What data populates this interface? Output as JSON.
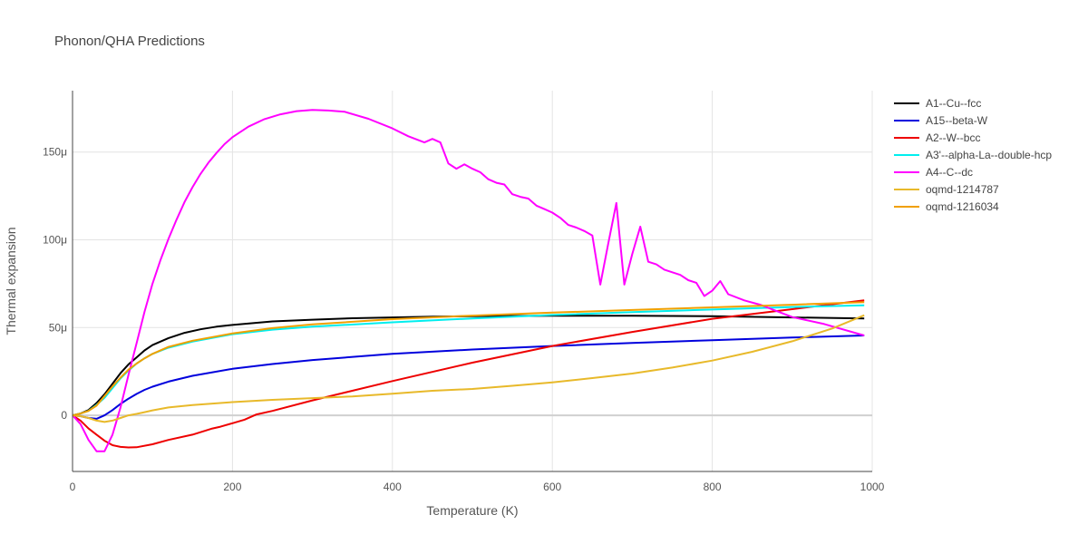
{
  "chart_data": {
    "type": "line",
    "title": "Phonon/QHA Predictions",
    "xlabel": "Temperature (K)",
    "ylabel": "Thermal expansion",
    "xlim": [
      0,
      1000
    ],
    "ylim": [
      -3.2e-05,
      0.000185
    ],
    "x_ticks": [
      0,
      200,
      400,
      600,
      800,
      1000
    ],
    "x_tick_labels": [
      "0",
      "200",
      "400",
      "600",
      "800",
      "1000"
    ],
    "y_ticks": [
      0,
      5e-05,
      0.0001,
      0.00015
    ],
    "y_tick_labels": [
      "0",
      "50μ",
      "100μ",
      "150μ"
    ],
    "grid": true,
    "legend_position": "right",
    "series": [
      {
        "name": "A1--Cu--fcc",
        "color": "#000000",
        "x": [
          0,
          10,
          20,
          30,
          40,
          50,
          60,
          70,
          80,
          90,
          100,
          120,
          140,
          160,
          180,
          200,
          250,
          300,
          350,
          400,
          450,
          500,
          600,
          700,
          800,
          900,
          990
        ],
        "y": [
          0,
          1e-06,
          3e-06,
          7e-06,
          1.2e-05,
          1.8e-05,
          2.4e-05,
          2.9e-05,
          3.3e-05,
          3.7e-05,
          4e-05,
          4.4e-05,
          4.7e-05,
          4.9e-05,
          5.05e-05,
          5.15e-05,
          5.35e-05,
          5.45e-05,
          5.53e-05,
          5.58e-05,
          5.62e-05,
          5.65e-05,
          5.67e-05,
          5.67e-05,
          5.65e-05,
          5.58e-05,
          5.52e-05
        ]
      },
      {
        "name": "A15--beta-W",
        "color": "#0000dd",
        "x": [
          0,
          10,
          20,
          30,
          40,
          50,
          60,
          70,
          80,
          90,
          100,
          120,
          150,
          200,
          250,
          300,
          400,
          500,
          600,
          700,
          800,
          900,
          990
        ],
        "y": [
          0,
          -5e-07,
          -1.5e-06,
          -2e-06,
          0,
          3e-06,
          6.5e-06,
          9.5e-06,
          1.22e-05,
          1.45e-05,
          1.63e-05,
          1.92e-05,
          2.25e-05,
          2.65e-05,
          2.92e-05,
          3.15e-05,
          3.5e-05,
          3.75e-05,
          3.95e-05,
          4.12e-05,
          4.28e-05,
          4.43e-05,
          4.55e-05
        ]
      },
      {
        "name": "A2--W--bcc",
        "color": "#ee0000",
        "x": [
          0,
          10,
          20,
          30,
          40,
          50,
          60,
          70,
          80,
          100,
          120,
          150,
          175,
          185,
          200,
          215,
          230,
          250,
          300,
          400,
          500,
          600,
          700,
          800,
          900,
          990
        ],
        "y": [
          0,
          -3e-06,
          -7.5e-06,
          -1.1e-05,
          -1.45e-05,
          -1.7e-05,
          -1.8e-05,
          -1.83e-05,
          -1.82e-05,
          -1.65e-05,
          -1.4e-05,
          -1.1e-05,
          -7.5e-06,
          -6.5e-06,
          -4.5e-06,
          -2.5e-06,
          5e-07,
          2.5e-06,
          8.5e-06,
          1.95e-05,
          3e-05,
          3.95e-05,
          4.75e-05,
          5.5e-05,
          6.05e-05,
          6.55e-05
        ]
      },
      {
        "name": "A3'--alpha-La--double-hcp",
        "color": "#00eeee",
        "x": [
          0,
          10,
          20,
          30,
          40,
          50,
          60,
          70,
          80,
          90,
          100,
          120,
          150,
          200,
          250,
          300,
          400,
          500,
          600,
          700,
          800,
          900,
          990
        ],
        "y": [
          0,
          1e-06,
          2.5e-06,
          6e-06,
          1e-05,
          1.55e-05,
          2.1e-05,
          2.55e-05,
          2.95e-05,
          3.25e-05,
          3.5e-05,
          3.85e-05,
          4.2e-05,
          4.62e-05,
          4.88e-05,
          5.05e-05,
          5.3e-05,
          5.52e-05,
          5.72e-05,
          5.88e-05,
          6.03e-05,
          6.17e-05,
          6.27e-05
        ]
      },
      {
        "name": "A4--C--dc",
        "color": "#ff00ff",
        "x": [
          0,
          10,
          20,
          30,
          40,
          50,
          60,
          70,
          80,
          90,
          100,
          110,
          120,
          130,
          140,
          150,
          160,
          170,
          180,
          190,
          200,
          220,
          240,
          260,
          280,
          300,
          320,
          340,
          370,
          400,
          420,
          440,
          450,
          460,
          470,
          480,
          490,
          500,
          510,
          520,
          530,
          540,
          550,
          560,
          570,
          580,
          590,
          600,
          610,
          620,
          630,
          640,
          650,
          660,
          670,
          680,
          690,
          700,
          710,
          720,
          730,
          740,
          750,
          760,
          770,
          780,
          790,
          800,
          810,
          820,
          840,
          860,
          880,
          900,
          940,
          990
        ],
        "y": [
          0,
          -5e-06,
          -1.4e-05,
          -2.05e-05,
          -2.05e-05,
          -1.1e-05,
          4.5e-06,
          2.3e-05,
          4.1e-05,
          5.9e-05,
          7.5e-05,
          8.85e-05,
          0.0001005,
          0.0001115,
          0.0001215,
          0.00013,
          0.0001375,
          0.000144,
          0.0001495,
          0.0001545,
          0.0001585,
          0.0001645,
          0.0001688,
          0.0001715,
          0.0001733,
          0.000174,
          0.0001737,
          0.000173,
          0.000169,
          0.0001635,
          0.000159,
          0.0001555,
          0.0001575,
          0.0001555,
          0.0001435,
          0.0001405,
          0.000143,
          0.0001405,
          0.0001385,
          0.0001345,
          0.0001325,
          0.0001315,
          0.000126,
          0.0001245,
          0.0001235,
          0.0001195,
          0.0001175,
          0.0001155,
          0.0001125,
          0.0001085,
          0.000107,
          0.000105,
          0.0001025,
          7.45e-05,
          9.8e-05,
          0.000121,
          7.45e-05,
          9.2e-05,
          0.0001075,
          8.75e-05,
          8.6e-05,
          8.3e-05,
          8.15e-05,
          8e-05,
          7.7e-05,
          7.55e-05,
          6.8e-05,
          7.1e-05,
          7.65e-05,
          6.9e-05,
          6.55e-05,
          6.3e-05,
          5.95e-05,
          5.6e-05,
          5.2e-05,
          4.55e-05
        ]
      },
      {
        "name": "oqmd-1214787",
        "color": "#e8b92a",
        "x": [
          0,
          10,
          20,
          30,
          40,
          50,
          60,
          70,
          80,
          90,
          100,
          120,
          150,
          200,
          250,
          300,
          350,
          400,
          450,
          500,
          550,
          600,
          650,
          700,
          750,
          800,
          850,
          900,
          950,
          990
        ],
        "y": [
          0,
          -5e-07,
          -1.5e-06,
          -3e-06,
          -3.8e-06,
          -3e-06,
          -1.5e-06,
          0,
          8e-07,
          1.8e-06,
          2.8e-06,
          4.5e-06,
          5.8e-06,
          7.5e-06,
          8.8e-06,
          9.8e-06,
          1.08e-05,
          1.23e-05,
          1.4e-05,
          1.5e-05,
          1.68e-05,
          1.88e-05,
          2.12e-05,
          2.38e-05,
          2.72e-05,
          3.12e-05,
          3.62e-05,
          4.22e-05,
          4.95e-05,
          5.7e-05
        ]
      },
      {
        "name": "oqmd-1216034",
        "color": "#f0a000",
        "x": [
          0,
          10,
          20,
          30,
          40,
          50,
          60,
          70,
          80,
          90,
          100,
          120,
          150,
          200,
          250,
          300,
          400,
          500,
          600,
          700,
          800,
          900,
          990
        ],
        "y": [
          0,
          1e-06,
          2.5e-06,
          5.5e-06,
          1.1e-05,
          1.65e-05,
          2.15e-05,
          2.6e-05,
          2.95e-05,
          3.25e-05,
          3.5e-05,
          3.9e-05,
          4.25e-05,
          4.67e-05,
          4.97e-05,
          5.18e-05,
          5.48e-05,
          5.68e-05,
          5.85e-05,
          6e-05,
          6.15e-05,
          6.3e-05,
          6.45e-05
        ]
      }
    ]
  }
}
